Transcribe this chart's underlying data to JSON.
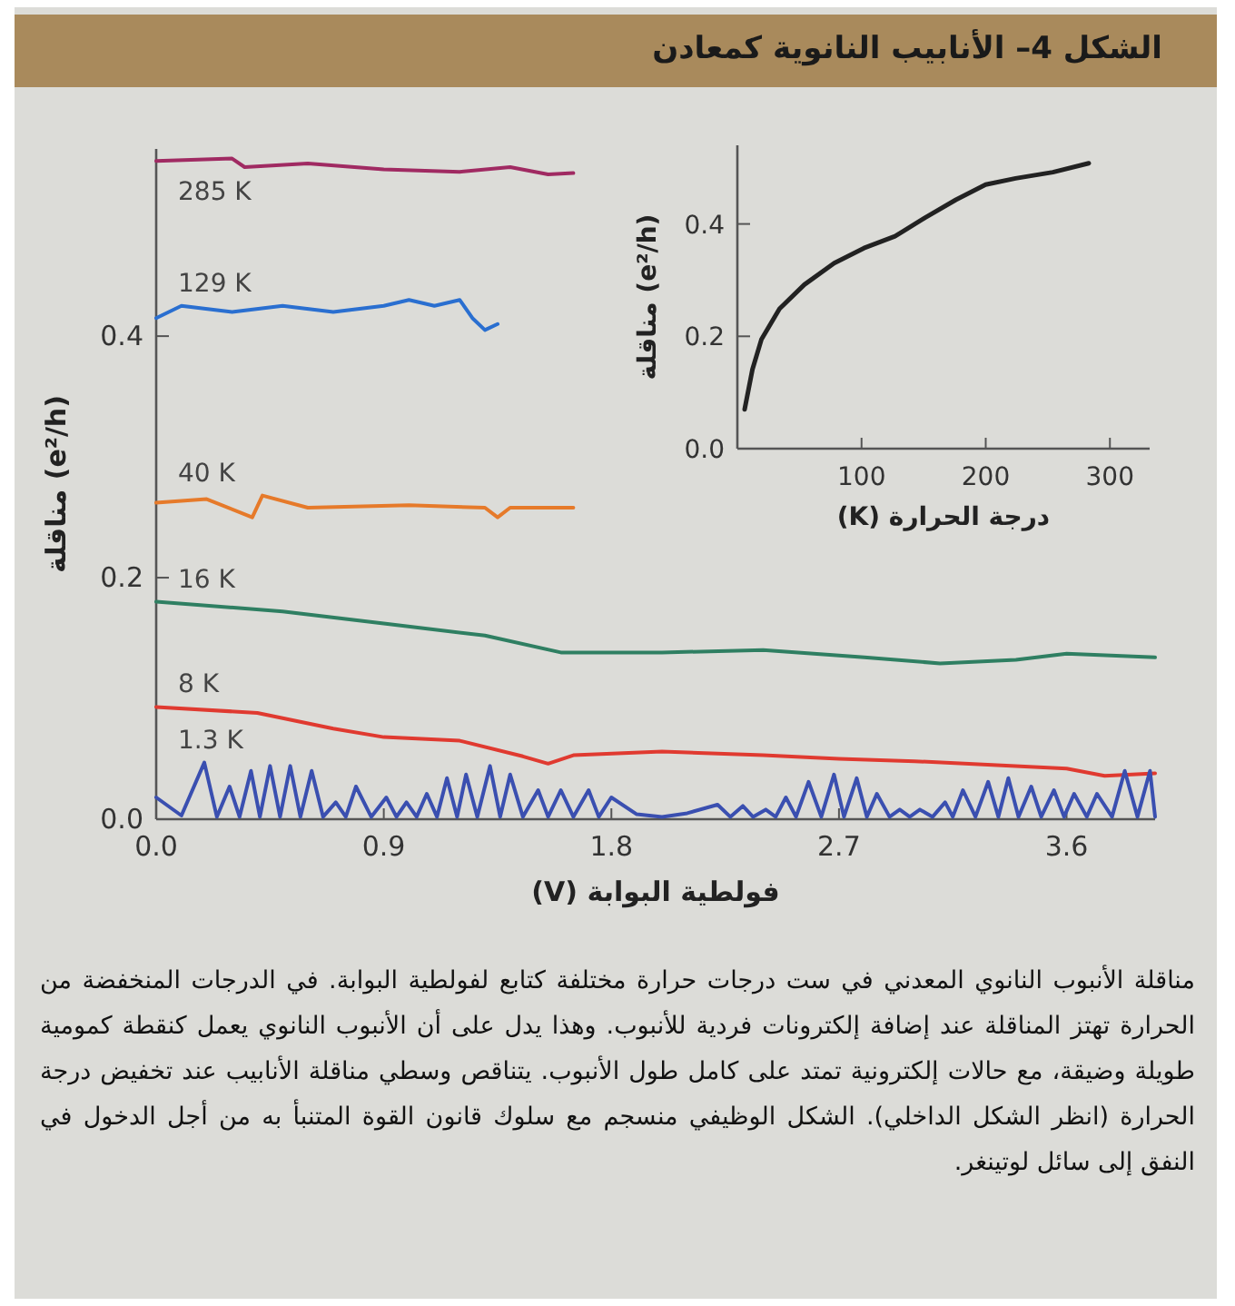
{
  "chart_data": [
    {
      "type": "line",
      "title": "الشكل 4– الأنابيب النانوية كمعادن",
      "xlabel": "فولطية البوابة (V)",
      "ylabel": "مناقلة (e²/h)",
      "xlim": [
        0,
        3.95
      ],
      "ylim": [
        0,
        0.555
      ],
      "xticks": [
        {
          "value": 0,
          "label": "0.0"
        },
        {
          "value": 0.9,
          "label": "0.9"
        },
        {
          "value": 1.8,
          "label": "1.8"
        },
        {
          "value": 2.7,
          "label": "2.7"
        },
        {
          "value": 3.6,
          "label": "3.6"
        }
      ],
      "yticks": [
        {
          "value": 0,
          "label": "0.0"
        },
        {
          "value": 0.2,
          "label": "0.2"
        },
        {
          "value": 0.4,
          "label": "0.4"
        }
      ],
      "annotations": [
        "مناقلة الأنبوب النانوي المعدني في ست درجات حرارة مختلفة كتابع لفولطية البوابة. في الدرجات المنخفضة من الحرارة تهتز المناقلة عند إضافة إلكترونات فردية للأنبوب. وهذا يدل على أن الأنبوب النانوي يعمل كنقطة كمومية طويلة وضيقة، مع حالات إلكترونية تمتد على كامل طول الأنبوب. يتناقص وسطي مناقلة الأنابيب عند تخفيض درجة الحرارة (انظر الشكل الداخلي). الشكل الوظيفي منسجم مع سلوك قانون القوة المتنبأ به من أجل الدخول في النفق إلى سائل لوتينغر."
      ],
      "series": [
        {
          "name": "285 K",
          "color": "#a02a62",
          "x": [
            0,
            0.3,
            0.35,
            0.6,
            0.9,
            1.2,
            1.4,
            1.55,
            1.65
          ],
          "values": [
            0.545,
            0.547,
            0.54,
            0.543,
            0.538,
            0.536,
            0.54,
            0.534,
            0.535
          ]
        },
        {
          "name": "129 K",
          "color": "#2a6fd0",
          "x": [
            0,
            0.1,
            0.3,
            0.5,
            0.7,
            0.9,
            1.0,
            1.1,
            1.2,
            1.25,
            1.3,
            1.35
          ],
          "values": [
            0.415,
            0.425,
            0.42,
            0.425,
            0.42,
            0.425,
            0.43,
            0.425,
            0.43,
            0.415,
            0.405,
            0.41
          ]
        },
        {
          "name": "40 K",
          "color": "#e67a2a",
          "x": [
            0,
            0.2,
            0.38,
            0.42,
            0.6,
            1.0,
            1.3,
            1.35,
            1.4,
            1.65
          ],
          "values": [
            0.262,
            0.265,
            0.25,
            0.268,
            0.258,
            0.26,
            0.258,
            0.25,
            0.258,
            0.258
          ]
        },
        {
          "name": "16 K",
          "color": "#2f7f62",
          "x": [
            0,
            0.5,
            0.9,
            1.3,
            1.6,
            2.0,
            2.4,
            2.8,
            3.1,
            3.4,
            3.6,
            3.95
          ],
          "values": [
            0.18,
            0.172,
            0.162,
            0.152,
            0.138,
            0.138,
            0.14,
            0.134,
            0.129,
            0.132,
            0.137,
            0.134
          ]
        },
        {
          "name": "8 K",
          "color": "#e03a30",
          "x": [
            0,
            0.4,
            0.7,
            0.9,
            1.2,
            1.45,
            1.55,
            1.65,
            2.0,
            2.4,
            2.7,
            3.0,
            3.6,
            3.75,
            3.95
          ],
          "values": [
            0.093,
            0.088,
            0.075,
            0.068,
            0.065,
            0.052,
            0.046,
            0.053,
            0.056,
            0.053,
            0.05,
            0.048,
            0.042,
            0.036,
            0.038
          ]
        },
        {
          "name": "1.3 K",
          "color": "#3a4fb0",
          "x": [
            0,
            0.1,
            0.19,
            0.24,
            0.29,
            0.33,
            0.375,
            0.41,
            0.45,
            0.49,
            0.53,
            0.57,
            0.615,
            0.66,
            0.71,
            0.75,
            0.79,
            0.85,
            0.91,
            0.95,
            0.99,
            1.03,
            1.07,
            1.11,
            1.15,
            1.19,
            1.225,
            1.27,
            1.32,
            1.36,
            1.4,
            1.45,
            1.51,
            1.55,
            1.6,
            1.65,
            1.71,
            1.75,
            1.8,
            1.9,
            2.0,
            2.1,
            2.22,
            2.27,
            2.32,
            2.36,
            2.41,
            2.45,
            2.49,
            2.53,
            2.58,
            2.63,
            2.68,
            2.72,
            2.77,
            2.81,
            2.85,
            2.9,
            2.94,
            2.98,
            3.02,
            3.07,
            3.12,
            3.15,
            3.19,
            3.24,
            3.29,
            3.33,
            3.37,
            3.41,
            3.46,
            3.5,
            3.55,
            3.59,
            3.63,
            3.68,
            3.72,
            3.78,
            3.83,
            3.88,
            3.93,
            3.95
          ],
          "values": [
            0.018,
            0.003,
            0.047,
            0.002,
            0.027,
            0.002,
            0.04,
            0.002,
            0.044,
            0.002,
            0.044,
            0.002,
            0.04,
            0.002,
            0.014,
            0.002,
            0.027,
            0.002,
            0.018,
            0.002,
            0.014,
            0.002,
            0.021,
            0.002,
            0.034,
            0.002,
            0.037,
            0.002,
            0.044,
            0.002,
            0.037,
            0.002,
            0.024,
            0.002,
            0.024,
            0.002,
            0.024,
            0.002,
            0.018,
            0.004,
            0.002,
            0.005,
            0.012,
            0.002,
            0.011,
            0.002,
            0.008,
            0.002,
            0.018,
            0.002,
            0.031,
            0.002,
            0.037,
            0.002,
            0.034,
            0.002,
            0.021,
            0.002,
            0.008,
            0.002,
            0.008,
            0.002,
            0.014,
            0.002,
            0.024,
            0.002,
            0.031,
            0.002,
            0.034,
            0.002,
            0.027,
            0.002,
            0.024,
            0.002,
            0.021,
            0.002,
            0.021,
            0.002,
            0.04,
            0.002,
            0.04,
            0.002
          ]
        }
      ]
    },
    {
      "type": "line",
      "xlabel": "درجة الحرارة (K)",
      "ylabel": "مناقلة (e²/h)",
      "xlim": [
        0,
        332
      ],
      "ylim": [
        0,
        0.54
      ],
      "xticks": [
        100,
        200,
        300
      ],
      "yticks": [
        {
          "value": 0,
          "label": "0.0"
        },
        {
          "value": 0.2,
          "label": "0.2"
        },
        {
          "value": 0.4,
          "label": "0.4"
        }
      ],
      "series": [
        {
          "color": "#222222",
          "x": [
            5.9,
            12.2,
            19.5,
            34,
            54,
            78,
            102,
            127,
            151,
            176,
            200,
            224,
            254,
            283
          ],
          "values": [
            0.07,
            0.141,
            0.195,
            0.249,
            0.292,
            0.33,
            0.357,
            0.378,
            0.411,
            0.443,
            0.47,
            0.481,
            0.492,
            0.508
          ]
        }
      ]
    }
  ]
}
